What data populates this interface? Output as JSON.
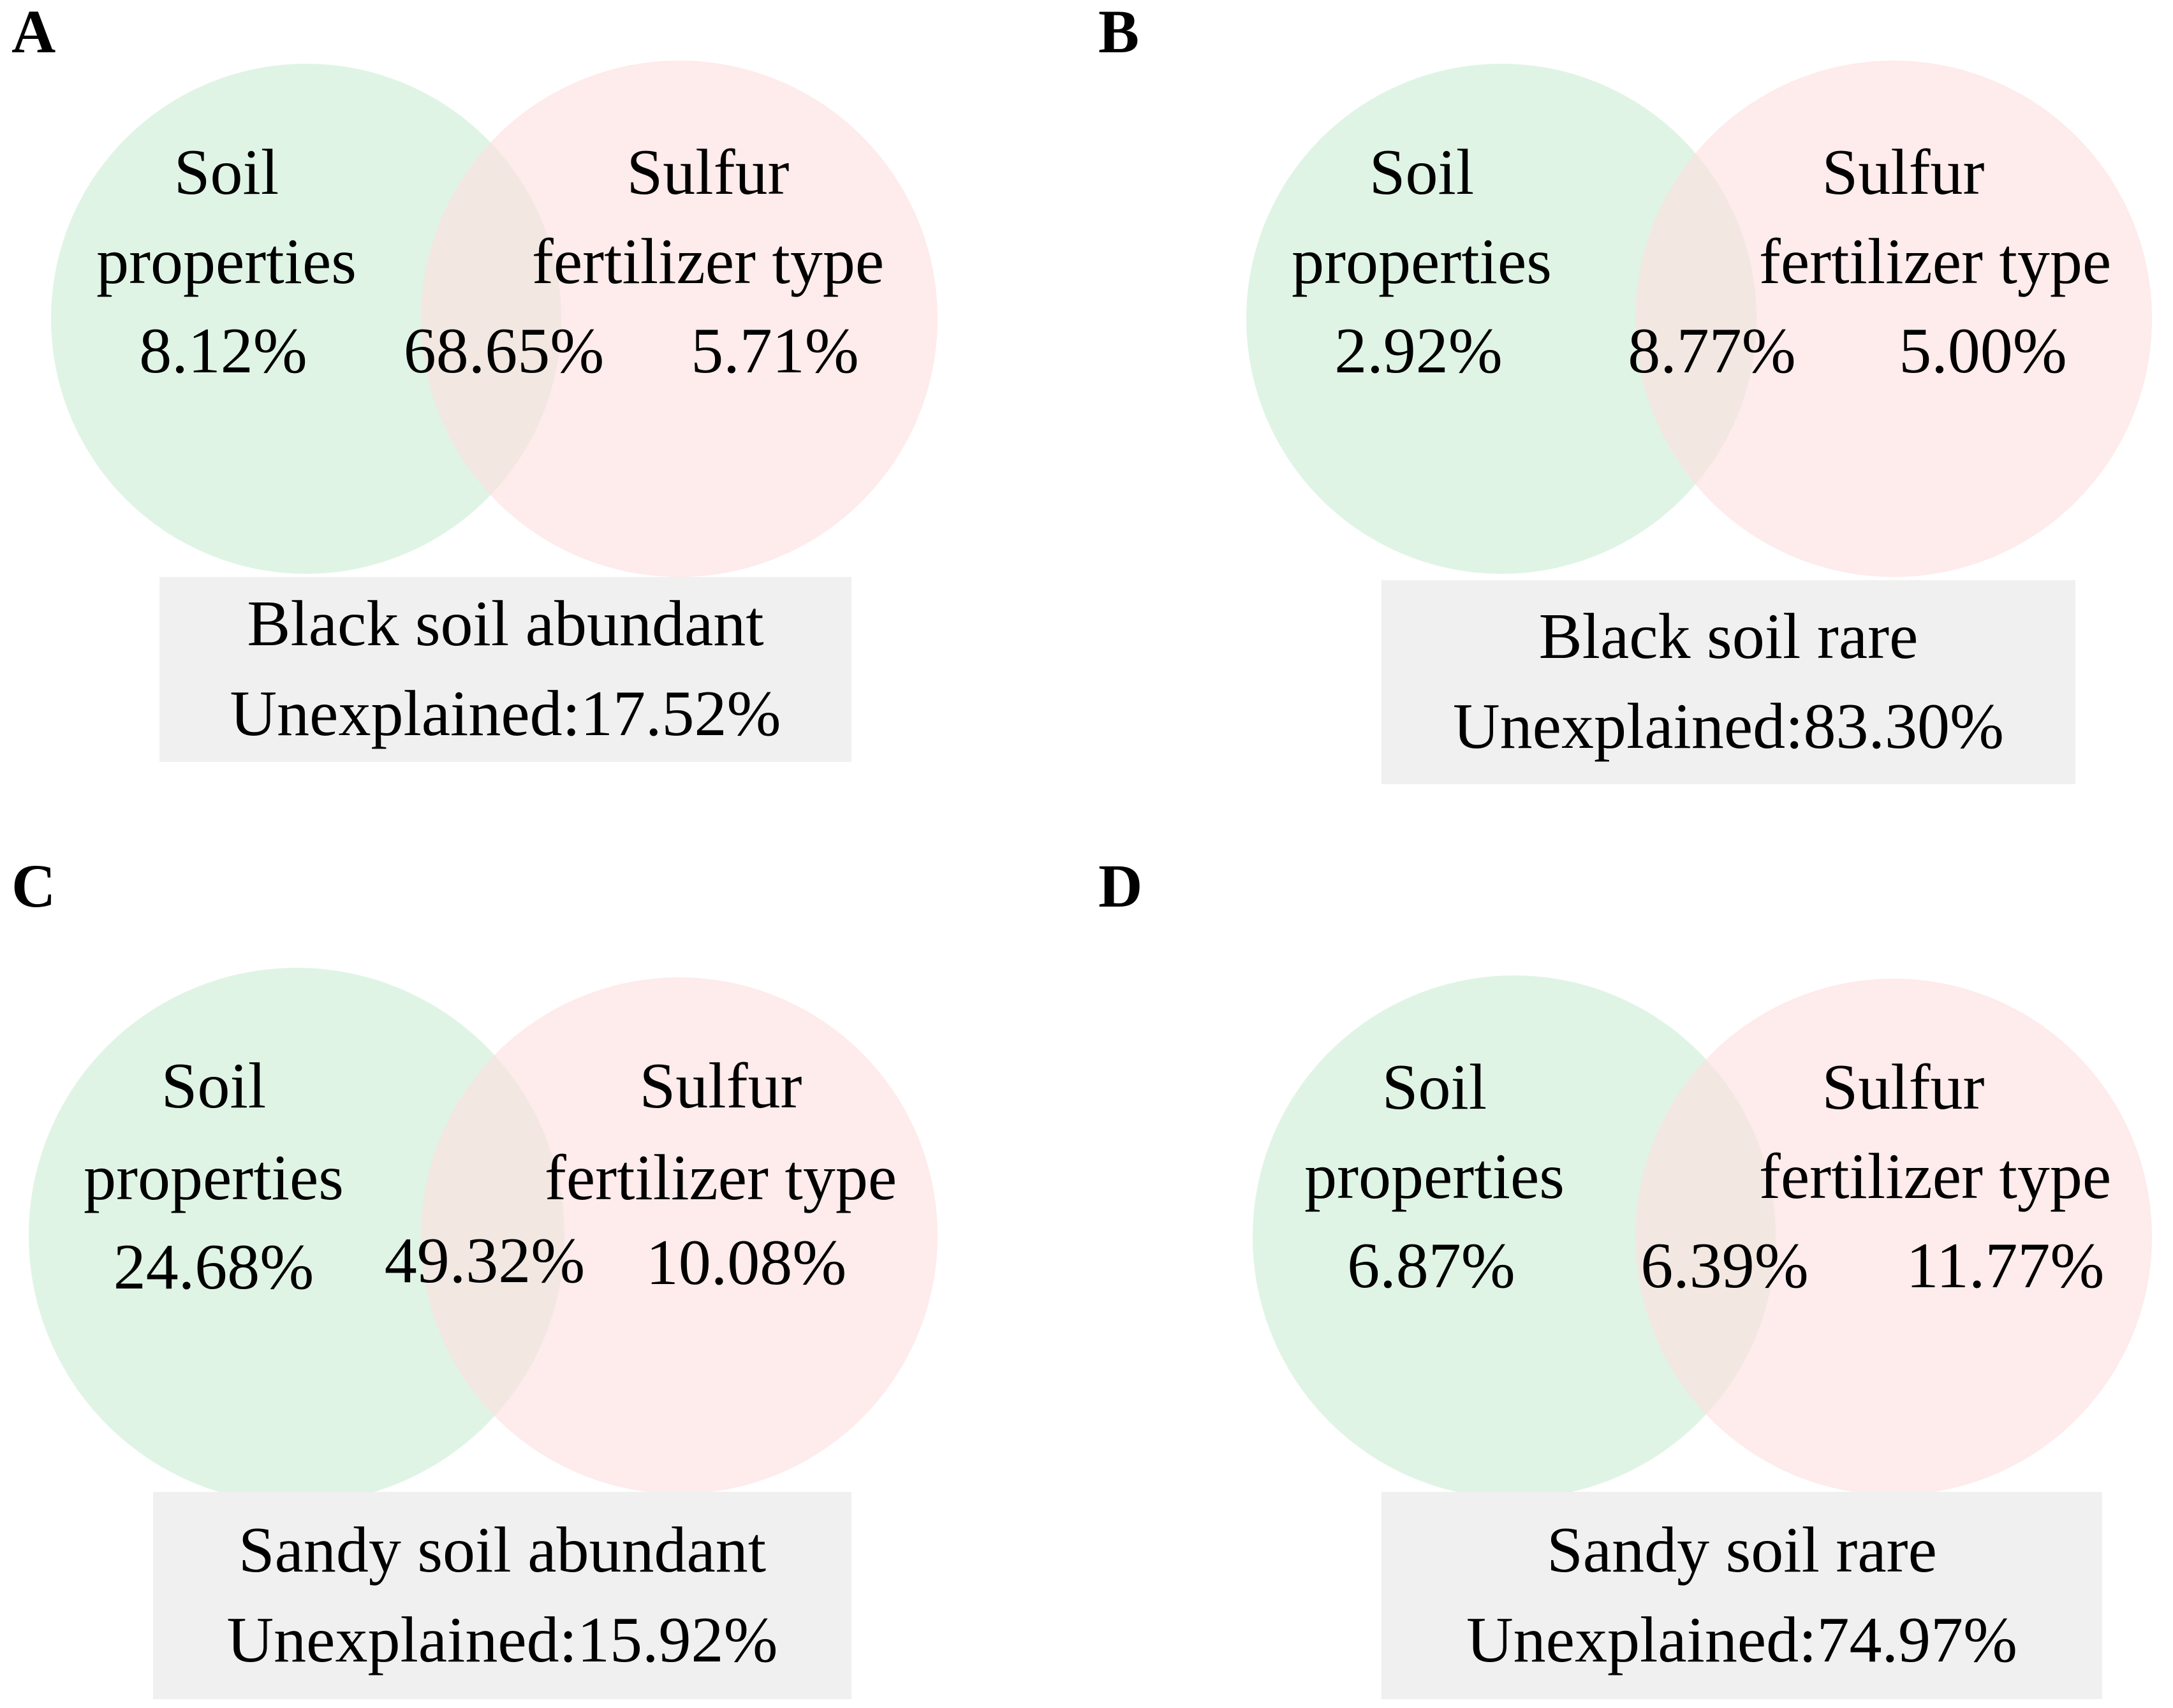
{
  "colors": {
    "soil_circle": "#d9f2e1",
    "sulfur_circle": "#fde4e4",
    "overlap": "#ecdfd4",
    "legend_bg": "#f0f0f0"
  },
  "panels": [
    {
      "letter": "A",
      "soil_label_line1": "Soil",
      "soil_label_line2": "properties",
      "sulfur_label_line1": "Sulfur",
      "sulfur_label_line2": "fertilizer type",
      "soil_value": "8.12%",
      "shared_value": "68.65%",
      "sulfur_value": "5.71%",
      "legend_title": "Black soil abundant",
      "legend_unexplained": "Unexplained:17.52%"
    },
    {
      "letter": "B",
      "soil_label_line1": "Soil",
      "soil_label_line2": "properties",
      "sulfur_label_line1": "Sulfur",
      "sulfur_label_line2": "fertilizer type",
      "soil_value": "2.92%",
      "shared_value": "8.77%",
      "sulfur_value": "5.00%",
      "legend_title": "Black soil rare",
      "legend_unexplained": "Unexplained:83.30%"
    },
    {
      "letter": "C",
      "soil_label_line1": "Soil",
      "soil_label_line2": "properties",
      "sulfur_label_line1": "Sulfur",
      "sulfur_label_line2": "fertilizer type",
      "soil_value": "24.68%",
      "shared_value": "49.32%",
      "sulfur_value": "10.08%",
      "legend_title": "Sandy soil abundant",
      "legend_unexplained": "Unexplained:15.92%"
    },
    {
      "letter": "D",
      "soil_label_line1": "Soil",
      "soil_label_line2": "properties",
      "sulfur_label_line1": "Sulfur",
      "sulfur_label_line2": "fertilizer type",
      "soil_value": "6.87%",
      "shared_value": "6.39%",
      "sulfur_value": "11.77%",
      "legend_title": "Sandy soil rare",
      "legend_unexplained": "Unexplained:74.97%"
    }
  ]
}
